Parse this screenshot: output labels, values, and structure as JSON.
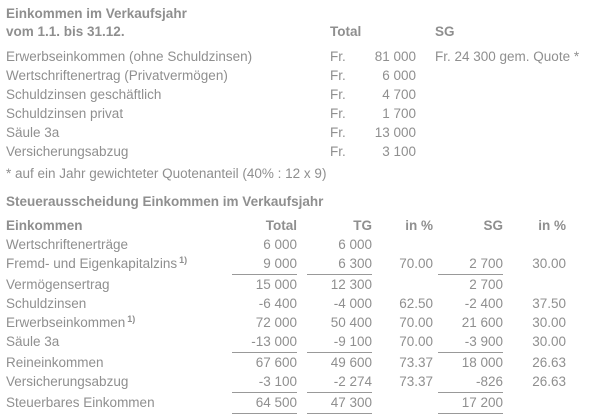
{
  "colors": {
    "text": "#8f8f8f",
    "background": "#ffffff",
    "rule": "#999999"
  },
  "section1": {
    "title_line1": "Einkommen im Verkaufsjahr",
    "title_line2": "vom 1.1. bis 31.12.",
    "col_total": "Total",
    "col_sg": "SG",
    "currency": "Fr.",
    "rows": [
      {
        "label": "Erwerbseinkommen (ohne Schuldzinsen)",
        "total": "81 000",
        "sg": "Fr. 24 300 gem. Quote *"
      },
      {
        "label": "Wertschriftenertrag (Privatvermögen)",
        "total": "6 000",
        "sg": ""
      },
      {
        "label": "Schuldzinsen geschäftlich",
        "total": "4 700",
        "sg": ""
      },
      {
        "label": "Schuldzinsen privat",
        "total": "1 700",
        "sg": ""
      },
      {
        "label": "Säule 3a",
        "total": "13 000",
        "sg": ""
      },
      {
        "label": "Versicherungsabzug",
        "total": "3 100",
        "sg": ""
      }
    ],
    "footnote": "* auf ein Jahr gewichteter Quotenanteil (40% : 12 x 9)"
  },
  "section2": {
    "title": "Steuerausscheidung Einkommen im Verkaufsjahr",
    "headers": {
      "label": "Einkommen",
      "total": "Total",
      "tg": "TG",
      "tg_pct": "in %",
      "sg": "SG",
      "sg_pct": "in %"
    },
    "rows": [
      {
        "label": "Wertschriftenerträge",
        "total": "6 000",
        "tg": "6 000",
        "tg_pct": "",
        "sg": "",
        "sg_pct": ""
      },
      {
        "label": "Fremd- und Eigenkapitalzins",
        "sup": "1)",
        "total": "9 000",
        "tg": "6 300",
        "tg_pct": "70.00",
        "sg": "2 700",
        "sg_pct": "30.00"
      },
      {
        "label": "Vermögensertrag",
        "total": "15 000",
        "tg": "12 300",
        "tg_pct": "",
        "sg": "2 700",
        "sg_pct": ""
      },
      {
        "label": "Schuldzinsen",
        "total": "-6 400",
        "tg": "-4 000",
        "tg_pct": "62.50",
        "sg": "-2 400",
        "sg_pct": "37.50"
      },
      {
        "label": "Erwerbseinkommen",
        "sup": "1)",
        "total": "72 000",
        "tg": "50 400",
        "tg_pct": "70.00",
        "sg": "21 600",
        "sg_pct": "30.00"
      },
      {
        "label": "Säule 3a",
        "total": "-13 000",
        "tg": "-9 100",
        "tg_pct": "70.00",
        "sg": "-3 900",
        "sg_pct": "30.00"
      },
      {
        "label": "Reineinkommen",
        "total": "67 600",
        "tg": "49 600",
        "tg_pct": "73.37",
        "sg": "18 000",
        "sg_pct": "26.63"
      },
      {
        "label": "Versicherungsabzug",
        "total": "-3 100",
        "tg": "-2 274",
        "tg_pct": "73.37",
        "sg": "-826",
        "sg_pct": "26.63"
      },
      {
        "label": "Steuerbares Einkommen",
        "total": "64 500",
        "tg": "47 300",
        "tg_pct": "",
        "sg": "17 200",
        "sg_pct": ""
      }
    ]
  }
}
